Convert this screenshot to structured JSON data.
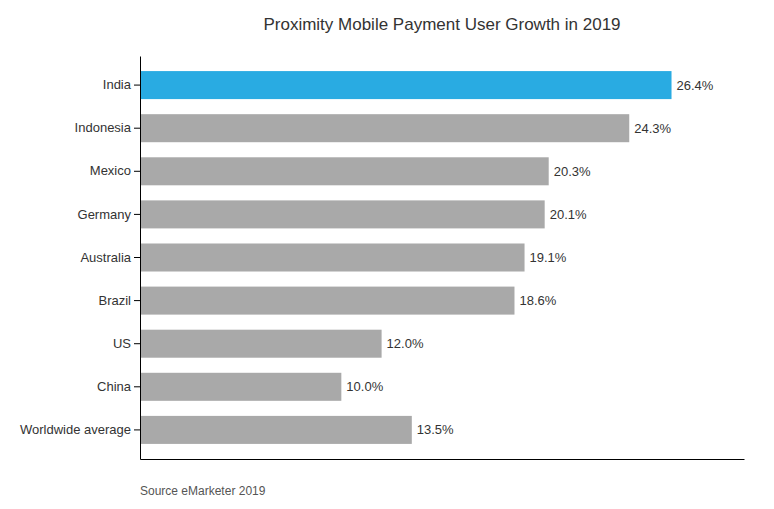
{
  "chart_data": {
    "type": "bar",
    "orientation": "horizontal",
    "title": "Proximity Mobile Payment User Growth in 2019",
    "source": "Source eMarketer 2019",
    "categories": [
      "India",
      "Indonesia",
      "Mexico",
      "Germany",
      "Australia",
      "Brazil",
      "US",
      "China",
      "Worldwide average"
    ],
    "values": [
      26.4,
      24.3,
      20.3,
      20.1,
      19.1,
      18.6,
      12.0,
      10.0,
      13.5
    ],
    "value_labels": [
      "26.4%",
      "24.3%",
      "20.3%",
      "20.1%",
      "19.1%",
      "18.6%",
      "12.0%",
      "10.0%",
      "13.5%"
    ],
    "colors": [
      "#29ABE2",
      "#A9A9A9",
      "#A9A9A9",
      "#A9A9A9",
      "#A9A9A9",
      "#A9A9A9",
      "#A9A9A9",
      "#A9A9A9",
      "#A9A9A9"
    ],
    "xlim": [
      0,
      30
    ],
    "data_labels": true,
    "tick_labels": "y"
  }
}
